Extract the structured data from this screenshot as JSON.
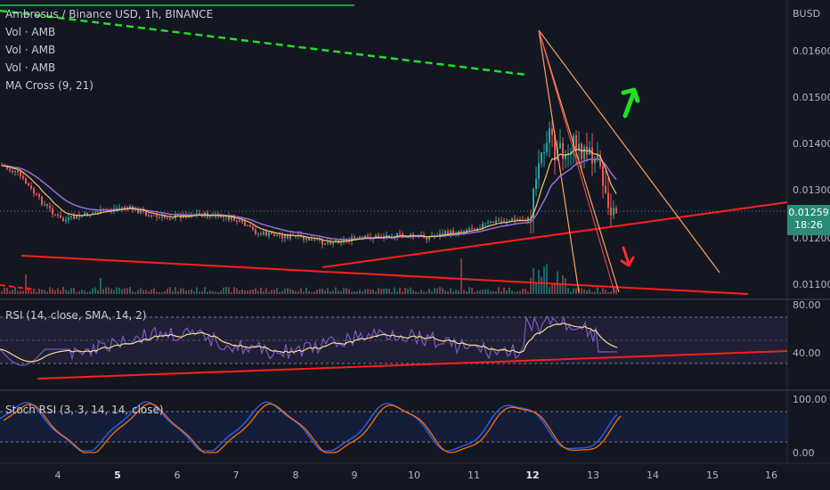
{
  "main_legend": {
    "title": "Ambrosus / Binance USD, 1h, BINANCE",
    "studies": [
      "Vol · AMB",
      "Vol · AMB",
      "Vol · AMB",
      "MA Cross (9, 21)"
    ]
  },
  "price_axis": {
    "currency": "BUSD",
    "ticks": [
      "0.01600",
      "0.01500",
      "0.01400",
      "0.01300",
      "0.01200",
      "0.01100"
    ],
    "last_price": "0.01259",
    "countdown": "18:26"
  },
  "rsi": {
    "label": "RSI (14, close, SMA, 14, 2)",
    "ticks": [
      "80.00",
      "40.00"
    ]
  },
  "stoch": {
    "label": "Stoch RSI (3, 3, 14, 14, close)",
    "ticks": [
      "100.00",
      "0.00"
    ]
  },
  "time_axis": [
    "4",
    "5",
    "6",
    "7",
    "8",
    "9",
    "10",
    "11",
    "12",
    "13",
    "14",
    "15",
    "16"
  ],
  "colors": {
    "background": "#131722",
    "up": "#26a69a",
    "down": "#ef5350",
    "ma_fast": "#f5c26b",
    "ma_slow": "#9c6ade",
    "trendline_red": "#ff1e1e",
    "trendline_orange": "#f7a45c",
    "arrow_green": "#22e022",
    "rsi": "#7e57c2",
    "rsi_ma": "#f0e08a",
    "stoch_k": "#2962ff",
    "stoch_d": "#ff6d00"
  }
}
